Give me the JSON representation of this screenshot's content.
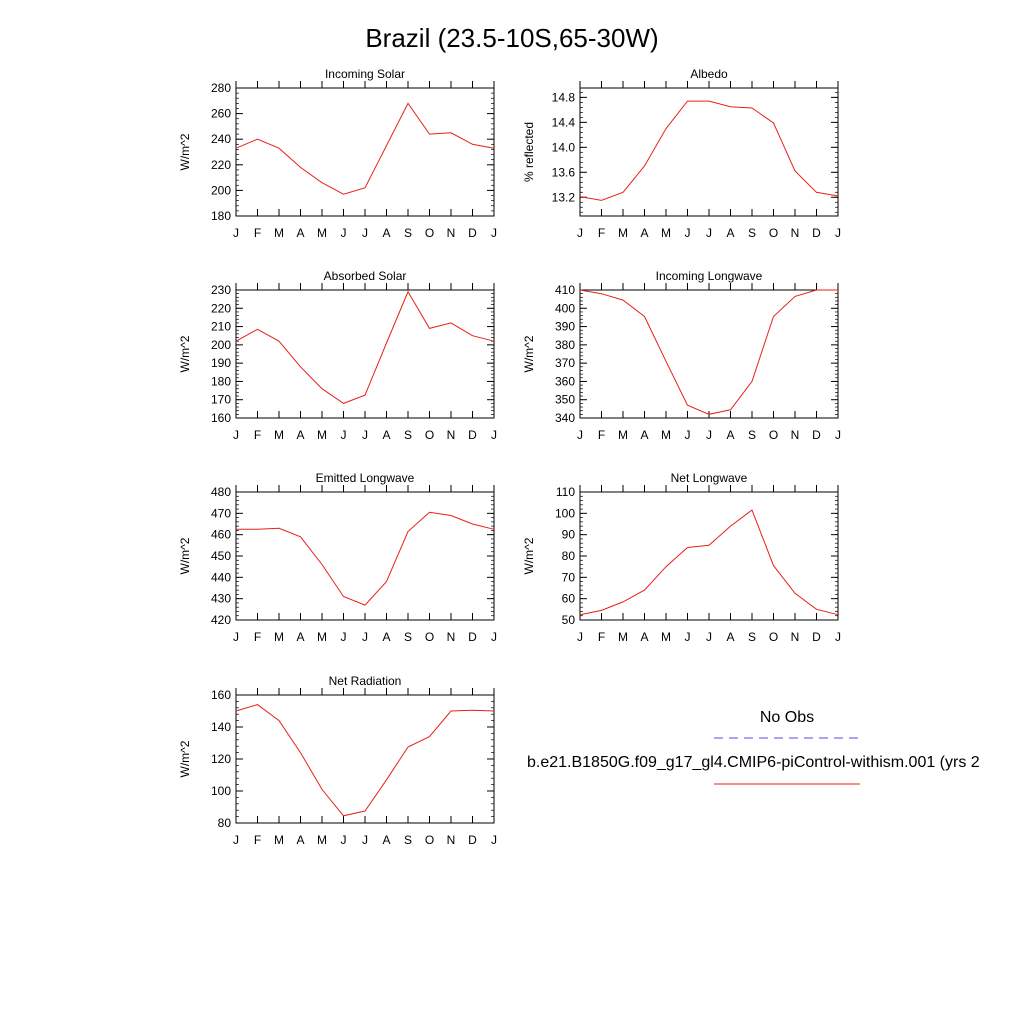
{
  "title": "Brazil (23.5-10S,65-30W)",
  "months": [
    "J",
    "F",
    "M",
    "A",
    "M",
    "J",
    "J",
    "A",
    "S",
    "O",
    "N",
    "D",
    "J"
  ],
  "series_color": "#e8201a",
  "obs_color": "#4a4cf0",
  "legend": {
    "obs_label": "No Obs",
    "model_label": "b.e21.B1850G.f09_g17_gl4.CMIP6-piControl-withism.001 (yrs 2"
  },
  "chart_data": [
    {
      "type": "line",
      "title": "Incoming Solar",
      "ylabel": "W/m^2",
      "ylim": [
        180,
        280
      ],
      "yticks": [
        180,
        200,
        220,
        240,
        260,
        280
      ],
      "values": [
        233,
        240,
        233,
        218,
        206,
        197,
        202,
        235,
        268,
        244,
        245,
        236,
        233
      ]
    },
    {
      "type": "line",
      "title": "Albedo",
      "ylabel": "% reflected",
      "ylim": [
        12.9,
        14.95
      ],
      "yticks": [
        13.2,
        13.6,
        14.0,
        14.4,
        14.8
      ],
      "values": [
        13.21,
        13.15,
        13.28,
        13.7,
        14.3,
        14.74,
        14.74,
        14.65,
        14.63,
        14.39,
        13.62,
        13.28,
        13.22
      ]
    },
    {
      "type": "line",
      "title": "Absorbed Solar",
      "ylabel": "W/m^2",
      "ylim": [
        160,
        230
      ],
      "yticks": [
        160,
        170,
        180,
        190,
        200,
        210,
        220,
        230
      ],
      "values": [
        202,
        208.5,
        202,
        188,
        176,
        168,
        172.5,
        201,
        229,
        209,
        212,
        205,
        202
      ]
    },
    {
      "type": "line",
      "title": "Incoming Longwave",
      "ylabel": "W/m^2",
      "ylim": [
        340,
        410
      ],
      "yticks": [
        340,
        350,
        360,
        370,
        380,
        390,
        400,
        410
      ],
      "values": [
        410,
        408,
        404.5,
        395.5,
        371,
        347,
        342,
        344.5,
        360,
        395.5,
        406.5,
        410,
        410
      ]
    },
    {
      "type": "line",
      "title": "Emitted Longwave",
      "ylabel": "W/m^2",
      "ylim": [
        420,
        480
      ],
      "yticks": [
        420,
        430,
        440,
        450,
        460,
        470,
        480
      ],
      "values": [
        462.5,
        462.5,
        463,
        459,
        446,
        431,
        427,
        438,
        461.5,
        470.5,
        469,
        465,
        462.5
      ]
    },
    {
      "type": "line",
      "title": "Net Longwave",
      "ylabel": "W/m^2",
      "ylim": [
        50,
        110
      ],
      "yticks": [
        50,
        60,
        70,
        80,
        90,
        100,
        110
      ],
      "values": [
        52.5,
        54.5,
        58.5,
        64,
        75,
        84,
        85,
        94,
        101.5,
        75.5,
        62.5,
        55,
        52.5
      ]
    },
    {
      "type": "line",
      "title": "Net Radiation",
      "ylabel": "W/m^2",
      "ylim": [
        80,
        160
      ],
      "yticks": [
        80,
        100,
        120,
        140,
        160
      ],
      "values": [
        150,
        154,
        144,
        124,
        101,
        84.5,
        87.5,
        107,
        127.5,
        134,
        150,
        150.5,
        150
      ]
    }
  ]
}
